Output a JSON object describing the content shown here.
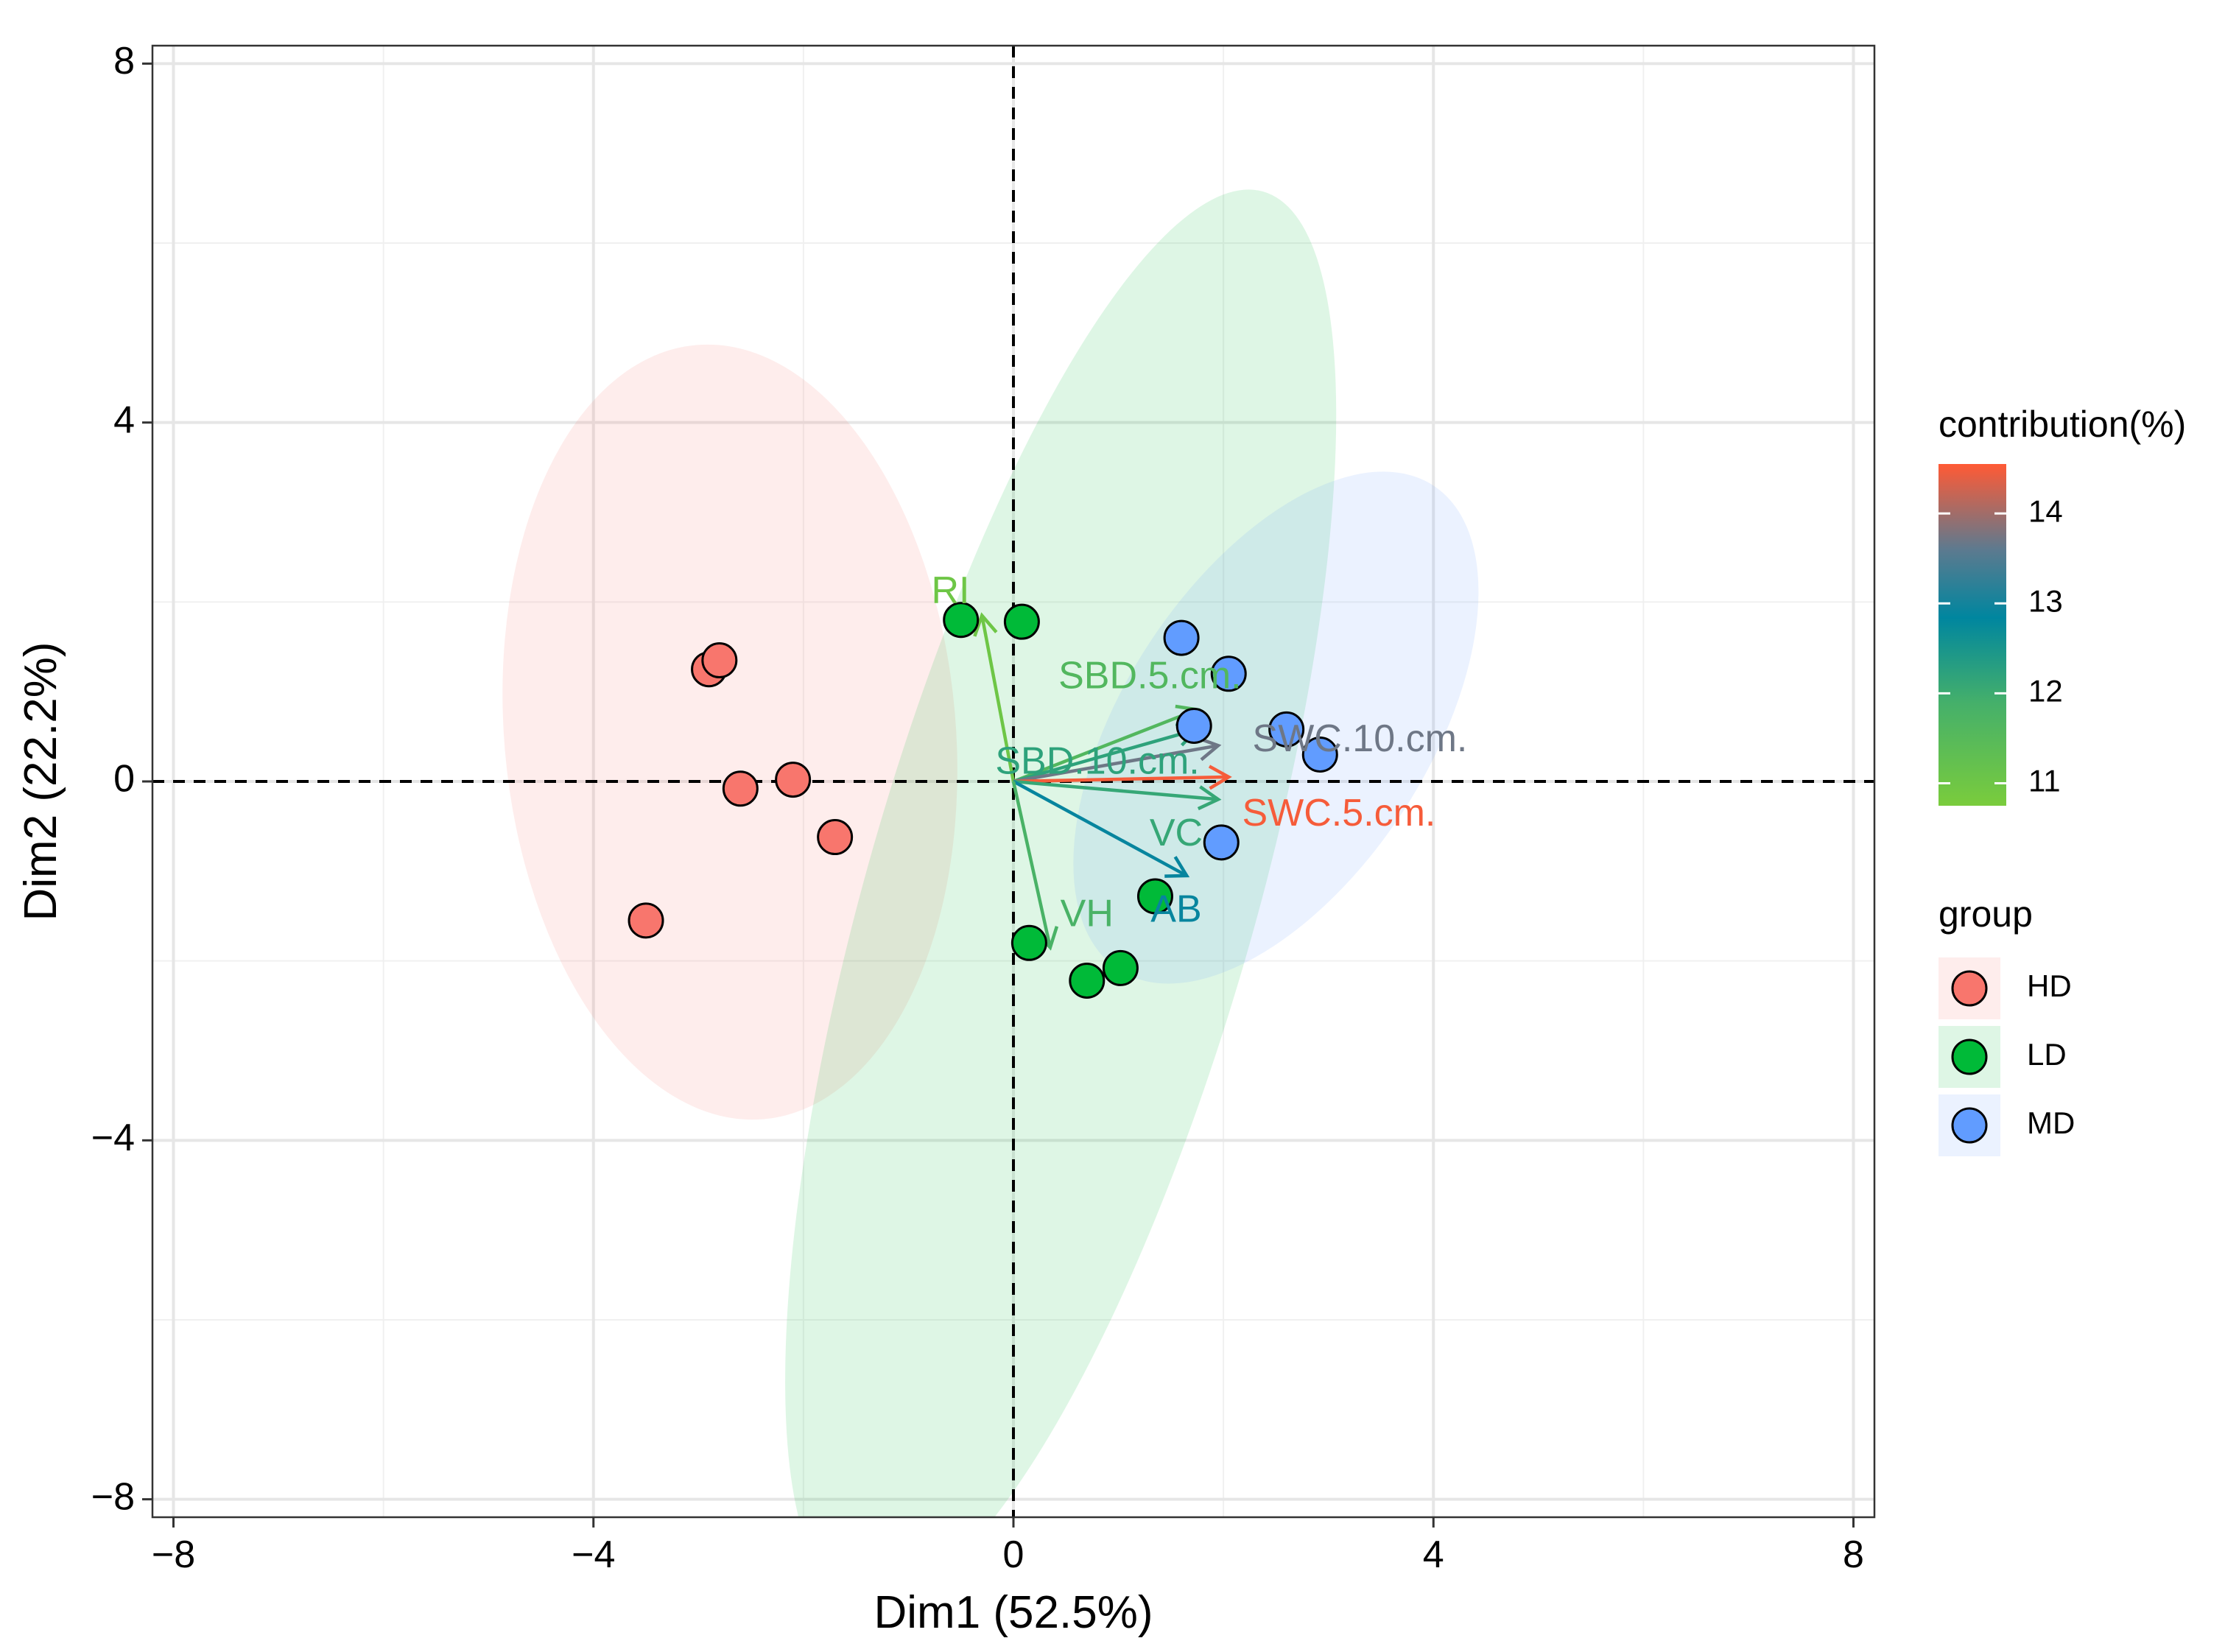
{
  "colors": {
    "HD": "#F8766D",
    "LD": "#00BA38",
    "MD": "#619CFF",
    "gradient_low": "#7ACC3C",
    "gradient_mid_low": "#45B06A",
    "gradient_mid": "#00869F",
    "gradient_mid_high": "#5D7A8F",
    "gradient_high": "#FF5A35"
  },
  "chart_data": {
    "type": "scatter",
    "subtype": "pca-biplot",
    "xlabel": "Dim1 (52.5%)",
    "ylabel": "Dim2 (22.2%)",
    "xlim": [
      -8.2,
      8.2
    ],
    "ylim": [
      -8.2,
      8.2
    ],
    "x_ticks": [
      -8,
      -4,
      0,
      4,
      8
    ],
    "y_ticks": [
      -8,
      -4,
      0,
      4,
      8
    ],
    "x_tick_labels": [
      "−8",
      "−4",
      "0",
      "4",
      "8"
    ],
    "y_tick_labels": [
      "−8",
      "−4",
      "0",
      "4",
      "8"
    ],
    "grid": true,
    "reference_lines": {
      "x": 0,
      "y": 0,
      "style": "dashed"
    },
    "groups": [
      {
        "name": "HD",
        "points": [
          {
            "x": -2.9,
            "y": 1.25
          },
          {
            "x": -2.8,
            "y": 1.35
          },
          {
            "x": -2.6,
            "y": -0.08
          },
          {
            "x": -2.1,
            "y": 0.02
          },
          {
            "x": -1.7,
            "y": -0.62
          },
          {
            "x": -3.5,
            "y": -1.55
          }
        ],
        "ellipse": {
          "cx": -2.7,
          "cy": 0.55,
          "rx": 2.15,
          "ry": 3.7,
          "angle_deg": -5
        }
      },
      {
        "name": "LD",
        "points": [
          {
            "x": -0.5,
            "y": 1.8
          },
          {
            "x": 0.08,
            "y": 1.78
          },
          {
            "x": 1.35,
            "y": -1.28
          },
          {
            "x": 0.15,
            "y": -1.8
          },
          {
            "x": 0.7,
            "y": -2.22
          },
          {
            "x": 1.02,
            "y": -2.08
          }
        ],
        "ellipse": {
          "cx": 0.45,
          "cy": -1.3,
          "rx": 1.85,
          "ry": 7.0,
          "angle_deg": 16
        }
      },
      {
        "name": "MD",
        "points": [
          {
            "x": 1.6,
            "y": 1.6
          },
          {
            "x": 2.05,
            "y": 1.2
          },
          {
            "x": 1.72,
            "y": 0.62
          },
          {
            "x": 2.6,
            "y": 0.58
          },
          {
            "x": 2.92,
            "y": 0.3
          },
          {
            "x": 1.98,
            "y": -0.68
          }
        ],
        "ellipse": {
          "cx": 2.5,
          "cy": 0.6,
          "rx": 1.45,
          "ry": 2.75,
          "angle_deg": 33
        }
      }
    ],
    "variables": [
      {
        "name": "RI",
        "x": -0.3,
        "y": 1.85,
        "contribution": 11.0,
        "label_x": -0.6,
        "label_y": 2.1
      },
      {
        "name": "SBD.5.cm.",
        "x": 1.75,
        "y": 0.8,
        "contribution": 11.6,
        "label_x": 1.3,
        "label_y": 1.15
      },
      {
        "name": "SBD.10.cm.",
        "x": 1.75,
        "y": 0.58,
        "contribution": 12.2,
        "label_x": 0.8,
        "label_y": 0.2
      },
      {
        "name": "SWC.10.cm.",
        "x": 1.95,
        "y": 0.4,
        "contribution": 13.7,
        "label_x": 3.3,
        "label_y": 0.45
      },
      {
        "name": "SWC.5.cm.",
        "x": 2.05,
        "y": 0.05,
        "contribution": 14.5,
        "label_x": 3.1,
        "label_y": -0.38
      },
      {
        "name": "VC",
        "x": 1.95,
        "y": -0.2,
        "contribution": 12.1,
        "label_x": 1.55,
        "label_y": -0.6
      },
      {
        "name": "AB",
        "x": 1.65,
        "y": -1.05,
        "contribution": 12.9,
        "label_x": 1.55,
        "label_y": -1.45
      },
      {
        "name": "VH",
        "x": 0.35,
        "y": -1.85,
        "contribution": 11.8,
        "label_x": 0.7,
        "label_y": -1.5
      }
    ],
    "legend": {
      "contribution_title": "contribution(%)",
      "contribution_range": [
        10.75,
        14.55
      ],
      "contribution_ticks": [
        14,
        13,
        12,
        11
      ],
      "contribution_tick_labels": [
        "14",
        "13",
        "12",
        "11"
      ],
      "group_title": "group",
      "group_labels": [
        "HD",
        "LD",
        "MD"
      ],
      "placement": "right"
    }
  }
}
